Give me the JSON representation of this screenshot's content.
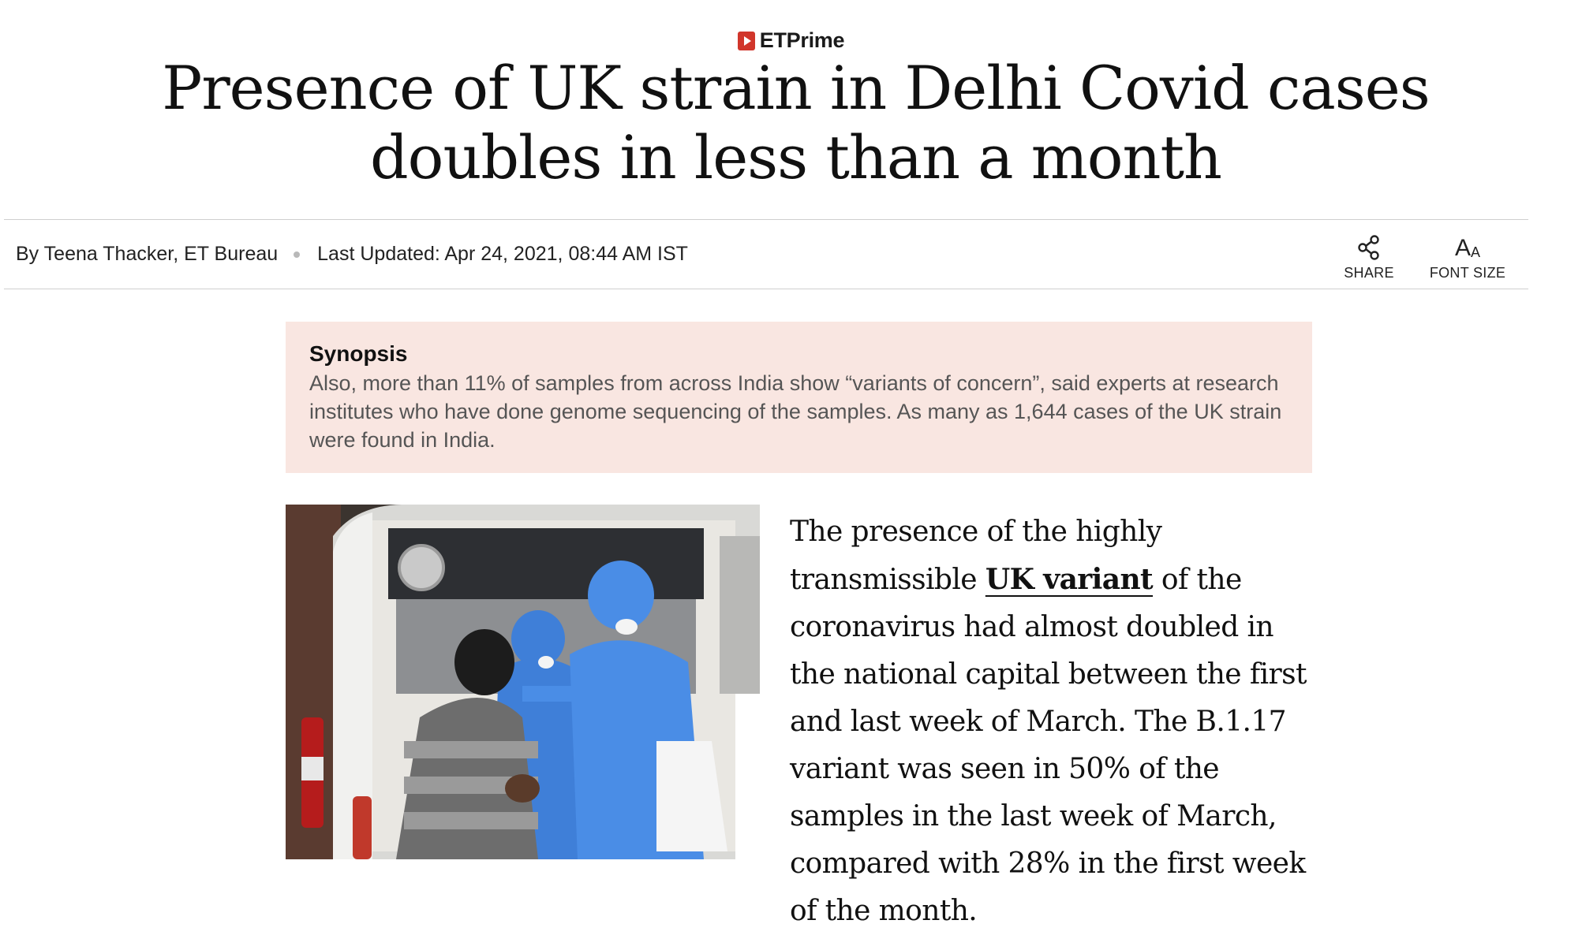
{
  "brand": {
    "name": "ETPrime",
    "accent_color": "#d1362b"
  },
  "article": {
    "headline": "Presence of UK strain in Delhi Covid cases doubles in less than a month",
    "byline": "By Teena Thacker, ET Bureau",
    "last_updated": "Last Updated: Apr 24, 2021, 08:44 AM IST"
  },
  "tools": {
    "share_label": "SHARE",
    "font_size_label": "FONT SIZE",
    "font_glyph_large": "A",
    "font_glyph_small": "A"
  },
  "synopsis": {
    "title": "Synopsis",
    "text": "Also, more than 11% of samples from across India show “variants of concern”, said experts at research institutes who have done genome sequencing of the samples. As many as 1,644 cases of the UK strain were found in India.",
    "background": "#f9e6e1"
  },
  "body": {
    "intro": "The presence of the highly transmissible ",
    "link_text": "UK variant",
    "rest": " of the coronavirus had almost doubled in the national capital between the first and last week of March. The B.1.17 variant was seen in 50% of the samples in the last week of March, compared with 28% in the first week of the month."
  }
}
